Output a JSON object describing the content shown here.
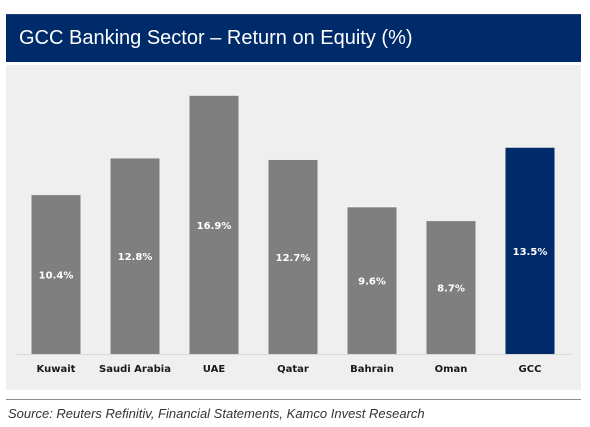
{
  "header": {
    "title": "GCC Banking Sector – Return on Equity (%)"
  },
  "footer": {
    "source": "Source: Reuters Refinitiv, Financial Statements, Kamco Invest Research"
  },
  "colors": {
    "title_bar": "#002B6A",
    "bar_default": "#7f7f7f",
    "bar_highlight": "#002B6A",
    "plot_background": "#efefef"
  },
  "chart_data": {
    "type": "bar",
    "title": "GCC Banking Sector – Return on Equity (%)",
    "categories": [
      "Kuwait",
      "Saudi Arabia",
      "UAE",
      "Qatar",
      "Bahrain",
      "Oman",
      "GCC"
    ],
    "values": [
      10.4,
      12.8,
      16.9,
      12.7,
      9.6,
      8.7,
      13.5
    ],
    "value_labels": [
      "10.4%",
      "12.8%",
      "16.9%",
      "12.7%",
      "9.6%",
      "8.7%",
      "13.5%"
    ],
    "highlight_category": "GCC",
    "xlabel": "",
    "ylabel": "",
    "ylim": [
      0,
      18
    ],
    "grid": false,
    "legend": "none"
  }
}
